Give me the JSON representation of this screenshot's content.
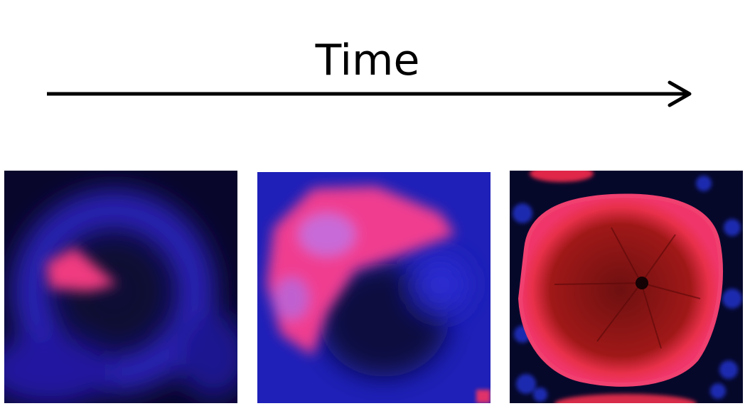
{
  "title": "Time"
}
